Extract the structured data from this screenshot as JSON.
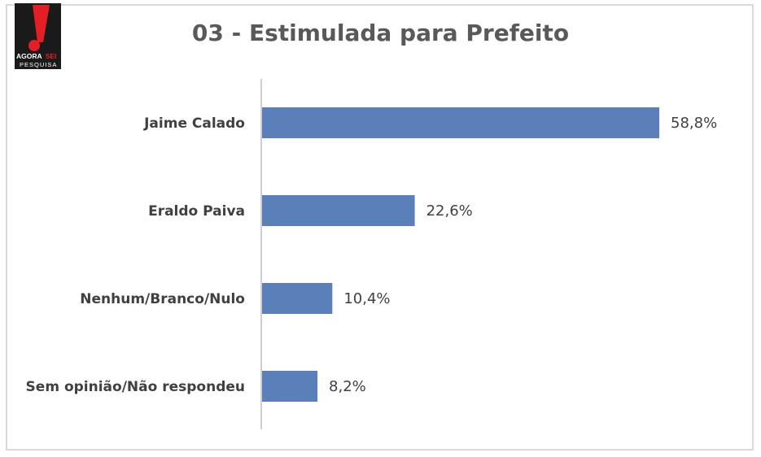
{
  "logo": {
    "line1_a": "AGORA",
    "line1_b": "SEI",
    "line2": "PESQUISA",
    "colors": {
      "background": "#1a1a1a",
      "mark": "#e31e24",
      "text": "#ffffff"
    }
  },
  "chart_data": {
    "type": "bar",
    "orientation": "horizontal",
    "title": "03 - Estimulada para Prefeito",
    "categories": [
      "Jaime Calado",
      "Eraldo Paiva",
      "Nenhum/Branco/Nulo",
      "Sem opinião/Não respondeu"
    ],
    "values": [
      58.8,
      22.6,
      10.4,
      8.2
    ],
    "value_labels": [
      "58,8%",
      "22,6%",
      "10,4%",
      "8,2%"
    ],
    "xlim": [
      0,
      60
    ],
    "grid": false,
    "legend": "none",
    "bar_color": "#5b80b9"
  }
}
